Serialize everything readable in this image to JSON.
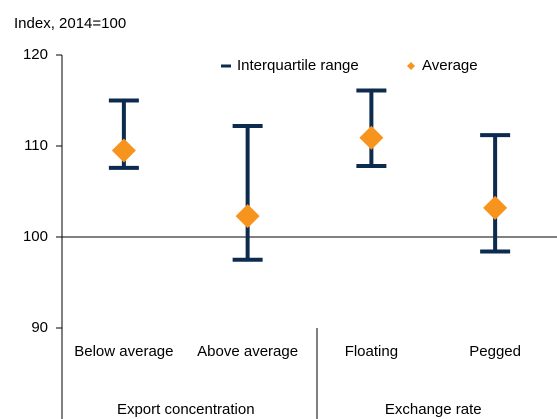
{
  "chart_data": {
    "type": "range",
    "title": "Index, 2014=100",
    "categories": [
      "Below average",
      "Above average",
      "Floating",
      "Pegged"
    ],
    "groups": [
      {
        "label": "Export concentration",
        "size": 2
      },
      {
        "label": "Exchange rate",
        "size": 2
      }
    ],
    "series": [
      {
        "name": "Interquartile range",
        "color": "#0d2a4f",
        "low": [
          107.6,
          97.5,
          107.8,
          98.4
        ],
        "high": [
          115.0,
          112.2,
          116.1,
          111.2
        ]
      },
      {
        "name": "Average",
        "color": "#f7941d",
        "values": [
          109.5,
          102.3,
          110.9,
          103.2
        ]
      }
    ],
    "ylim": [
      90,
      120
    ],
    "yticks": [
      90,
      100,
      110,
      120
    ],
    "reference_line": 100
  }
}
